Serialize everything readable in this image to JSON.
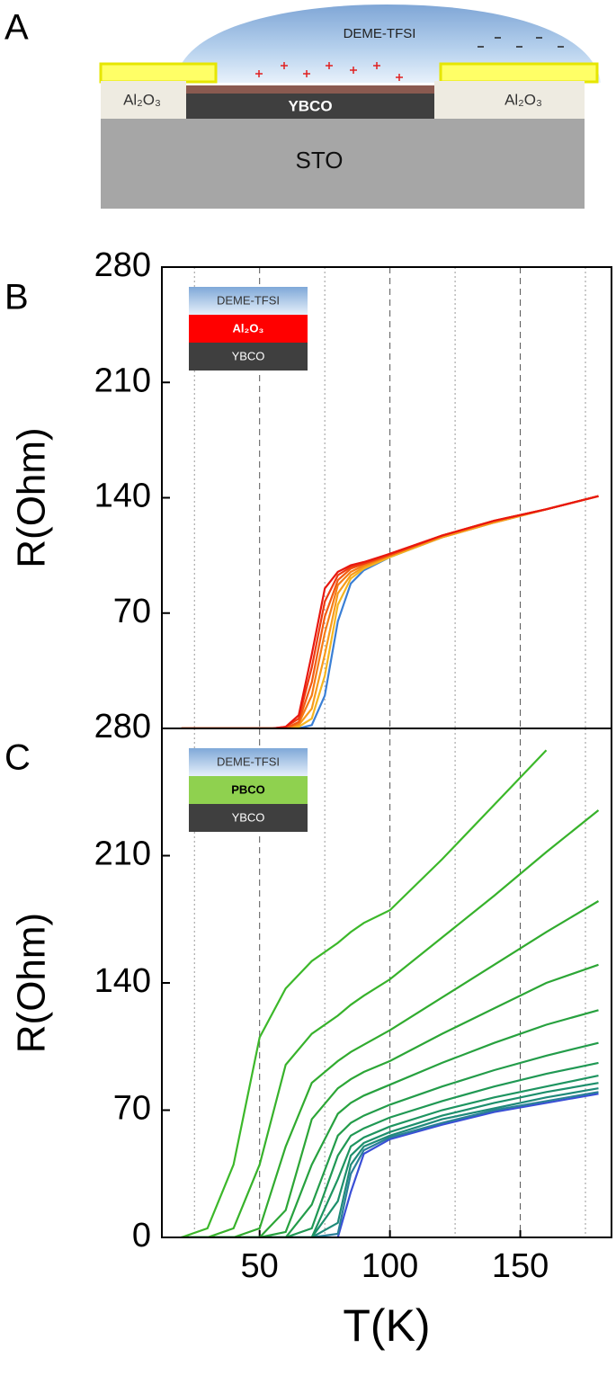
{
  "panel_labels": [
    "A",
    "B",
    "C"
  ],
  "panel_a": {
    "droplet": "DEME-TFSI",
    "left_layer": "Al₂O₃",
    "right_layer": "Al₂O₃",
    "film": "YBCO",
    "substrate": "STO"
  },
  "chart_data": [
    {
      "type": "line",
      "y_label": "R(Ohm)",
      "inset": [
        "DEME-TFSI",
        "Al₂O₃",
        "YBCO"
      ],
      "xlim": [
        12.5,
        185
      ],
      "ylim": [
        0,
        280
      ],
      "xticks": [
        50,
        100,
        150
      ],
      "x_minor_grid": [
        25,
        75,
        125,
        175
      ],
      "yticks": [
        70,
        140,
        210,
        280
      ],
      "show_xtick_labels": false,
      "x": [
        20,
        55,
        60,
        65,
        70,
        75,
        80,
        85,
        90,
        100,
        120,
        140,
        160,
        180
      ],
      "series": [
        {
          "color": "#3a7fd5",
          "values": [
            0,
            0,
            0,
            0,
            2,
            20,
            65,
            88,
            96,
            104,
            116,
            125,
            133,
            141
          ]
        },
        {
          "color": "#f5b520",
          "values": [
            0,
            0,
            0,
            1,
            6,
            32,
            75,
            91,
            97,
            104,
            116,
            125,
            133,
            141
          ]
        },
        {
          "color": "#f89a1a",
          "values": [
            0,
            0,
            0,
            2,
            12,
            45,
            82,
            93,
            98,
            105,
            116,
            125,
            133,
            141
          ]
        },
        {
          "color": "#f57c15",
          "values": [
            0,
            0,
            0,
            3,
            20,
            58,
            87,
            95,
            99,
            105,
            117,
            126,
            133,
            141
          ]
        },
        {
          "color": "#f25a12",
          "values": [
            0,
            0,
            0,
            4,
            28,
            68,
            90,
            97,
            100,
            105,
            117,
            126,
            133,
            141
          ]
        },
        {
          "color": "#ee3a10",
          "values": [
            0,
            0,
            1,
            6,
            37,
            77,
            93,
            98,
            100,
            106,
            117,
            126,
            133,
            141
          ]
        },
        {
          "color": "#e8170f",
          "values": [
            0,
            0,
            1,
            8,
            45,
            85,
            95,
            99,
            101,
            106,
            117,
            126,
            133,
            141
          ]
        }
      ]
    },
    {
      "type": "line",
      "y_label": "R(Ohm)",
      "x_label": "T(K)",
      "inset": [
        "DEME-TFSI",
        "PBCO",
        "YBCO"
      ],
      "xlim": [
        12.5,
        185
      ],
      "ylim": [
        0,
        280
      ],
      "xticks": [
        50,
        100,
        150
      ],
      "x_minor_grid": [
        25,
        75,
        125,
        175
      ],
      "yticks": [
        0,
        70,
        140,
        210,
        280
      ],
      "show_xtick_labels": true,
      "x": [
        20,
        30,
        40,
        50,
        60,
        70,
        80,
        85,
        90,
        100,
        120,
        140,
        160,
        180
      ],
      "series": [
        {
          "color": "#3a4fd6",
          "values": [
            0,
            0,
            0,
            0,
            0,
            0,
            0,
            25,
            46,
            54,
            62,
            69,
            74,
            79
          ]
        },
        {
          "color": "#2a7f98",
          "values": [
            0,
            0,
            0,
            0,
            0,
            0,
            2,
            35,
            48,
            55,
            63,
            70,
            75,
            80
          ]
        },
        {
          "color": "#1f8a7a",
          "values": [
            0,
            0,
            0,
            0,
            0,
            0,
            8,
            40,
            50,
            56,
            65,
            71,
            77,
            82
          ]
        },
        {
          "color": "#1d8f6c",
          "values": [
            0,
            0,
            0,
            0,
            0,
            0,
            20,
            45,
            52,
            58,
            67,
            74,
            80,
            85
          ]
        },
        {
          "color": "#1e9460",
          "values": [
            0,
            0,
            0,
            0,
            0,
            0,
            32,
            50,
            55,
            61,
            70,
            77,
            83,
            89
          ]
        },
        {
          "color": "#209854",
          "values": [
            0,
            0,
            0,
            0,
            0,
            5,
            45,
            56,
            60,
            66,
            75,
            83,
            90,
            96
          ]
        },
        {
          "color": "#239c4a",
          "values": [
            0,
            0,
            0,
            0,
            0,
            18,
            56,
            63,
            67,
            73,
            83,
            92,
            100,
            107
          ]
        },
        {
          "color": "#27a13f",
          "values": [
            0,
            0,
            0,
            0,
            3,
            40,
            68,
            74,
            78,
            84,
            96,
            107,
            117,
            125
          ]
        },
        {
          "color": "#2ca636",
          "values": [
            0,
            0,
            0,
            0,
            15,
            65,
            82,
            87,
            91,
            97,
            112,
            126,
            140,
            150
          ]
        },
        {
          "color": "#31ab2f",
          "values": [
            0,
            0,
            0,
            5,
            50,
            85,
            97,
            102,
            106,
            114,
            132,
            150,
            168,
            185
          ]
        },
        {
          "color": "#37b22b",
          "values": [
            0,
            0,
            5,
            40,
            95,
            112,
            122,
            128,
            133,
            142,
            165,
            188,
            212,
            235
          ]
        },
        {
          "color": "#3cb82a",
          "values": [
            0,
            5,
            40,
            110,
            137,
            152,
            162,
            168,
            173,
            180,
            208,
            238,
            268,
            null
          ]
        }
      ]
    }
  ]
}
